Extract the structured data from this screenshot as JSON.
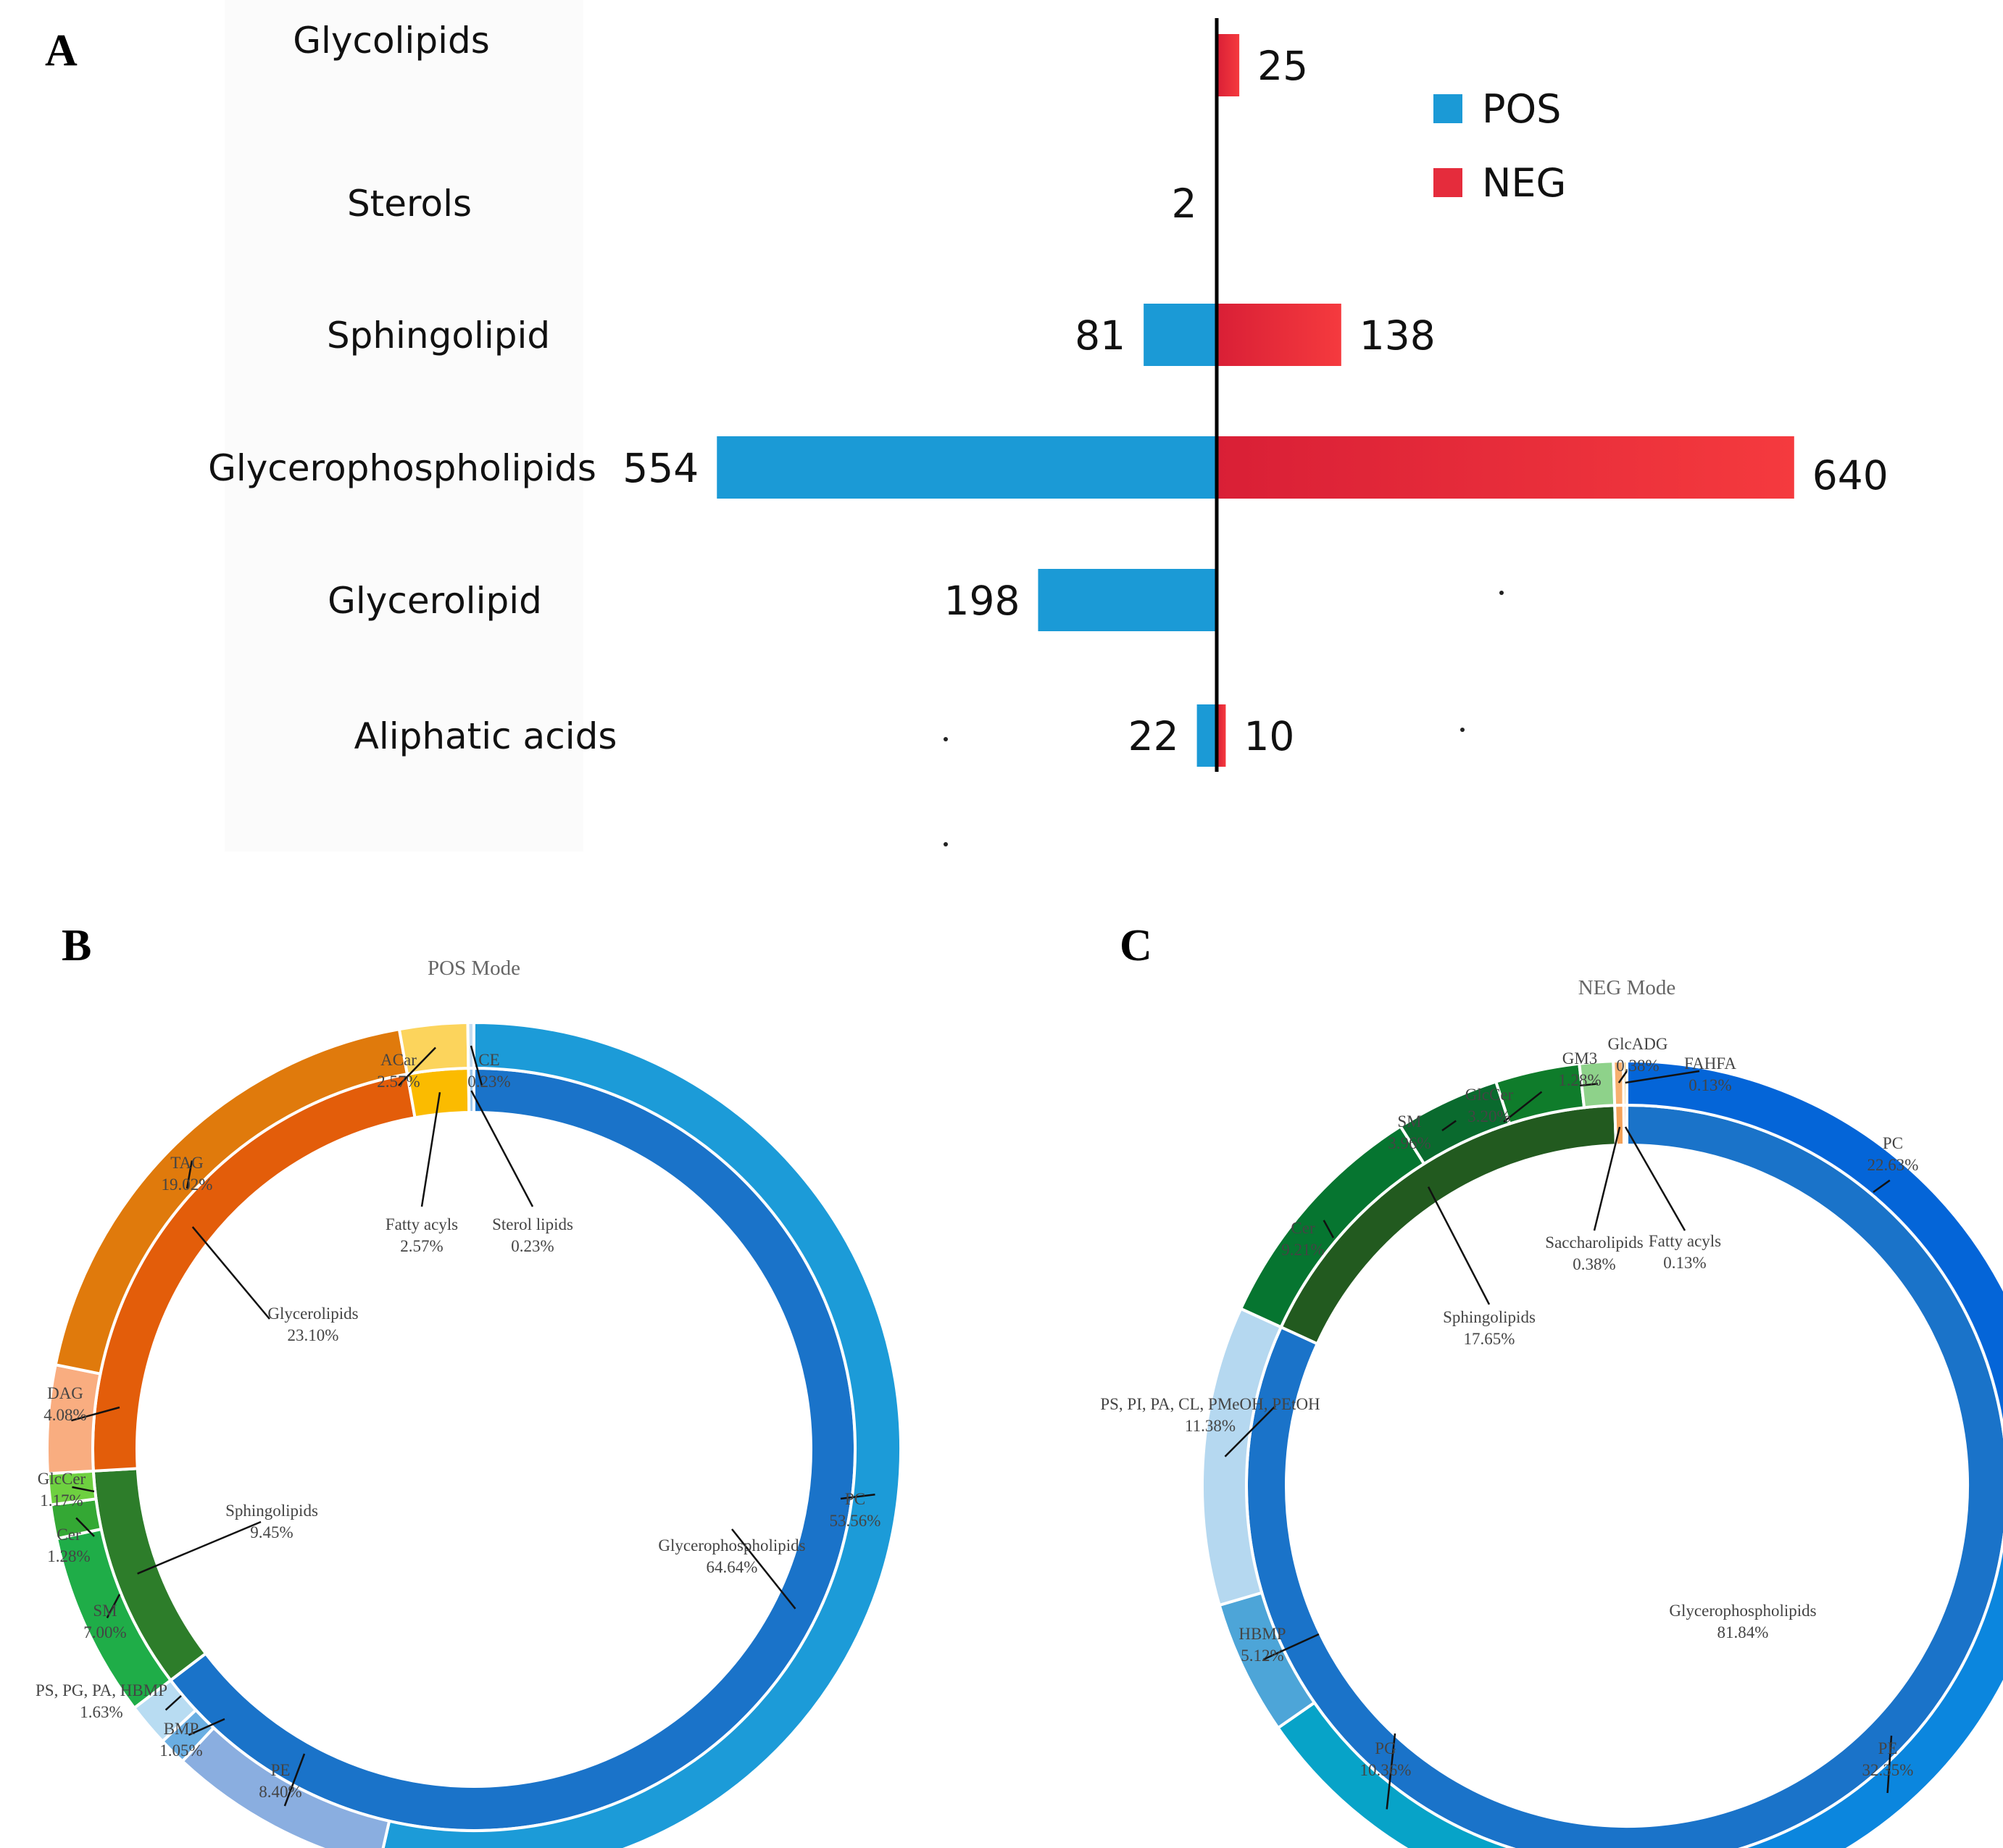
{
  "panels": {
    "a": "A",
    "b": "B",
    "c": "C"
  },
  "chart_data": [
    {
      "type": "bar",
      "orientation": "horizontal-diverging",
      "categories": [
        "Glycolipids",
        "Sterols",
        "Sphingolipid",
        "Glycerophospholipids",
        "Glycerolipid",
        "Aliphatic acids"
      ],
      "series": [
        {
          "name": "POS",
          "color": "#1b9ad6",
          "values": [
            0,
            2,
            81,
            554,
            198,
            22
          ]
        },
        {
          "name": "NEG",
          "color": "#e52c3c",
          "values": [
            25,
            0,
            138,
            640,
            0,
            10
          ]
        }
      ],
      "labels": {
        "pos": [
          null,
          "2",
          "81",
          "554",
          "198",
          "22"
        ],
        "neg": [
          "25",
          null,
          "138",
          "640",
          null,
          "10"
        ]
      },
      "legend": [
        "POS",
        "NEG"
      ],
      "legend_position": "top-right"
    },
    {
      "type": "pie",
      "title": "POS Mode",
      "inner": [
        {
          "name": "Glycerophospholipids",
          "value": 64.64,
          "label": "64.64%",
          "color": "#1a73c9"
        },
        {
          "name": "Sphingolipids",
          "value": 9.45,
          "label": "9.45%",
          "color": "#2d7d2a"
        },
        {
          "name": "Glycerolipids",
          "value": 23.1,
          "label": "23.10%",
          "color": "#e35d0a"
        },
        {
          "name": "Fatty acyls",
          "value": 2.57,
          "label": "2.57%",
          "color": "#fbbb00"
        },
        {
          "name": "Sterol lipids",
          "value": 0.23,
          "label": "0.23%",
          "color": "#9fc7ea"
        }
      ],
      "outer": [
        {
          "name": "PC",
          "value": 53.56,
          "label": "53.56%",
          "color": "#1c9bd8"
        },
        {
          "name": "PE",
          "value": 8.4,
          "label": "8.40%",
          "color": "#8aaee0"
        },
        {
          "name": "BMP",
          "value": 1.05,
          "label": "1.05%",
          "color": "#6aaee2"
        },
        {
          "name": "PS, PG, PA, HBMP",
          "value": 1.63,
          "label": "1.63%",
          "color": "#b8dcf2"
        },
        {
          "name": "SM",
          "value": 7.0,
          "label": "7.00%",
          "color": "#1fad48"
        },
        {
          "name": "Cer",
          "value": 1.28,
          "label": "1.28%",
          "color": "#34a834"
        },
        {
          "name": "GlcCer",
          "value": 1.17,
          "label": "1.17%",
          "color": "#6ed040"
        },
        {
          "name": "DAG",
          "value": 4.08,
          "label": "4.08%",
          "color": "#f9ad80"
        },
        {
          "name": "TAG",
          "value": 19.02,
          "label": "19.02%",
          "color": "#e07a0c"
        },
        {
          "name": "ACar",
          "value": 2.57,
          "label": "2.57%",
          "color": "#fcd45c"
        },
        {
          "name": "CE",
          "value": 0.23,
          "label": "0.23%",
          "color": "#c5dcef"
        }
      ]
    },
    {
      "type": "pie",
      "title": "NEG Mode",
      "inner": [
        {
          "name": "Glycerophospholipids",
          "value": 81.84,
          "label": "81.84%",
          "color": "#1a73c9"
        },
        {
          "name": "Sphingolipids",
          "value": 17.65,
          "label": "17.65%",
          "color": "#225a1f"
        },
        {
          "name": "Saccharolipids",
          "value": 0.38,
          "label": "0.38%",
          "color": "#f4a259"
        },
        {
          "name": "Fatty acyls",
          "value": 0.13,
          "label": "0.13%",
          "color": "#e35d0a"
        }
      ],
      "outer": [
        {
          "name": "PC",
          "value": 22.63,
          "label": "22.63%",
          "color": "#0465d8"
        },
        {
          "name": "PE",
          "value": 32.35,
          "label": "32.35%",
          "color": "#0b86de"
        },
        {
          "name": "PG",
          "value": 10.36,
          "label": "10.36%",
          "color": "#07a3c8"
        },
        {
          "name": "HBMP",
          "value": 5.12,
          "label": "5.12%",
          "color": "#4da5d8"
        },
        {
          "name": "PS, PI, PA, CL, PMeOH, PEtOH",
          "value": 11.38,
          "label": "11.38%",
          "color": "#b5d8f0"
        },
        {
          "name": "Cer",
          "value": 9.21,
          "label": "9.21%",
          "color": "#067530"
        },
        {
          "name": "SM",
          "value": 3.96,
          "label": "3.96%",
          "color": "#0a6a2e"
        },
        {
          "name": "GlcCer",
          "value": 3.2,
          "label": "3.20%",
          "color": "#0f7c2b"
        },
        {
          "name": "GM3",
          "value": 1.28,
          "label": "1.28%",
          "color": "#8ed28a"
        },
        {
          "name": "GlcADG",
          "value": 0.38,
          "label": "0.38%",
          "color": "#f7b06e"
        },
        {
          "name": "FAHFA",
          "value": 0.13,
          "label": "0.13%",
          "color": "#e6a020"
        }
      ]
    }
  ]
}
